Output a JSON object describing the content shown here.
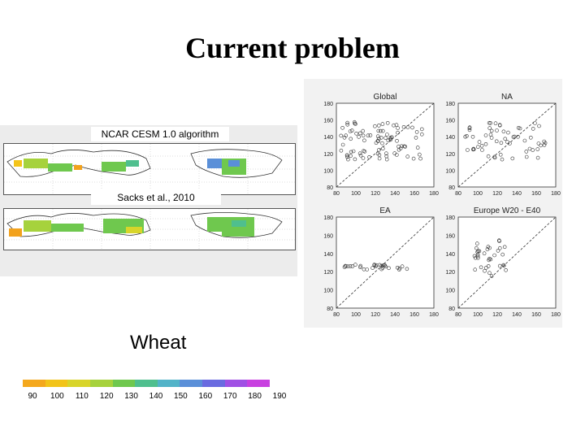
{
  "slide": {
    "title": "Current problem",
    "crop_label": "Wheat"
  },
  "maps": {
    "top_label": "NCAR CESM 1.0 algorithm",
    "bottom_label": "Sacks et al., 2010",
    "colorbar_ticks": [
      "90",
      "100",
      "110",
      "120",
      "130",
      "140",
      "150",
      "160",
      "170",
      "180",
      "190"
    ],
    "colorbar_colors": [
      "#f4a81d",
      "#f2c419",
      "#d8d52a",
      "#a6d23c",
      "#6fc84e",
      "#4fbf8e",
      "#52b3c8",
      "#5a8fd8",
      "#6a6be0",
      "#a050e4",
      "#c840e0"
    ]
  },
  "scatter_plots": {
    "panels": [
      {
        "title": "Global"
      },
      {
        "title": "NA"
      },
      {
        "title": "EA"
      },
      {
        "title": "Europe W20 - E40"
      }
    ],
    "y_ticks": [
      "180",
      "160",
      "140",
      "120",
      "100",
      "80"
    ],
    "x_ticks": [
      "80",
      "100",
      "120",
      "140",
      "160",
      "180"
    ]
  }
}
